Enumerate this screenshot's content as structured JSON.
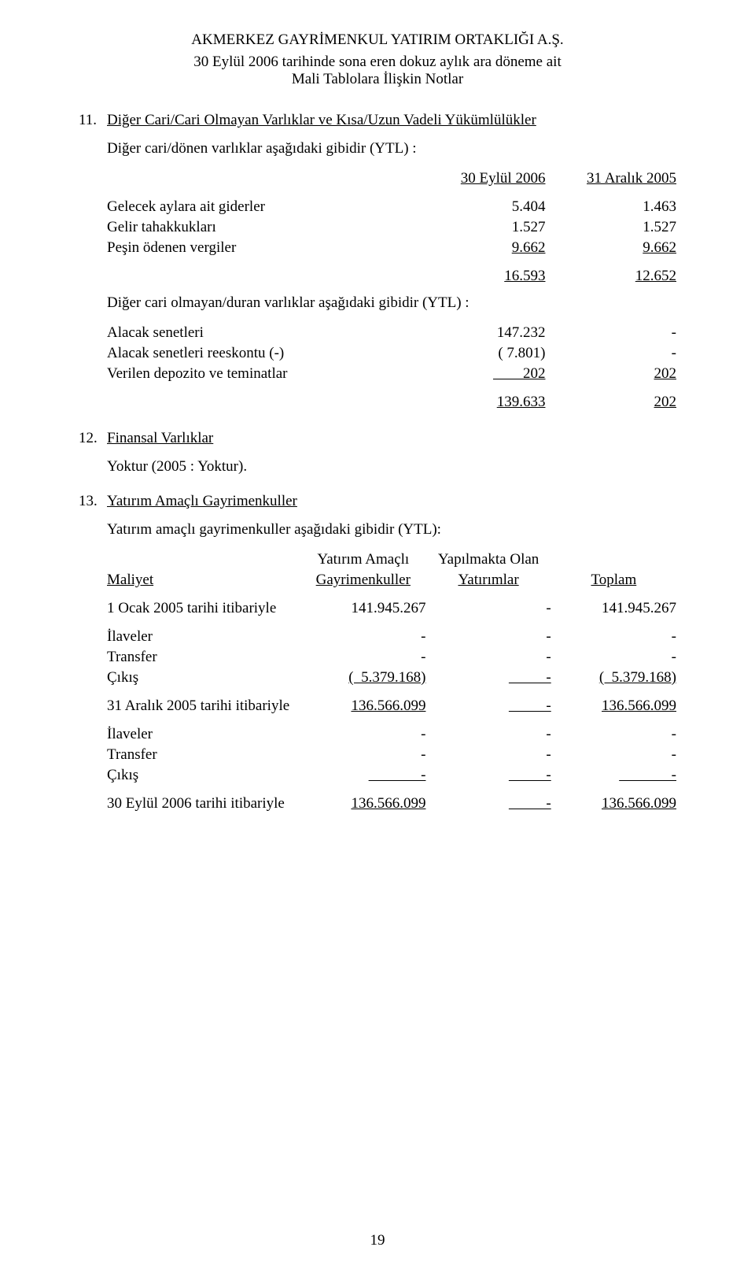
{
  "header": {
    "company": "AKMERKEZ GAYRİMENKUL YATIRIM ORTAKLIĞI A.Ş.",
    "sub_line1": "30 Eylül 2006 tarihinde sona eren dokuz aylık ara döneme ait",
    "sub_line2": "Mali Tablolara İlişkin Notlar"
  },
  "s11": {
    "num": "11.",
    "title": "Diğer Cari/Cari Olmayan Varlıklar ve Kısa/Uzun Vadeli Yükümlülükler",
    "intro": "Diğer cari/dönen varlıklar aşağıdaki gibidir (YTL) :",
    "col_a": "30 Eylül 2006",
    "col_b": "31 Aralık 2005",
    "rows": [
      {
        "label": "Gelecek aylara ait giderler",
        "a": "5.404",
        "b": "1.463"
      },
      {
        "label": "Gelir tahakkukları",
        "a": "1.527",
        "b": "1.527"
      },
      {
        "label": "Peşin ödenen vergiler",
        "a": "9.662",
        "b": "9.662"
      }
    ],
    "total": {
      "a": "16.593",
      "b": "12.652"
    },
    "intro2": "Diğer cari olmayan/duran varlıklar aşağıdaki gibidir (YTL) :",
    "rows2": [
      {
        "label": "Alacak senetleri",
        "a": "147.232",
        "b": "-"
      },
      {
        "label": "Alacak senetleri reeskontu (-)",
        "a": "( 7.801)",
        "b": "-"
      },
      {
        "label": "Verilen depozito ve teminatlar",
        "a": "        202",
        "b": "202"
      }
    ],
    "total2": {
      "a": "139.633",
      "b": "202"
    }
  },
  "s12": {
    "num": "12.",
    "title": "Finansal Varlıklar",
    "body": "Yoktur (2005 : Yoktur)."
  },
  "s13": {
    "num": "13.",
    "title": "Yatırım Amaçlı Gayrimenkuller",
    "intro": "Yatırım amaçlı gayrimenkuller aşağıdaki gibidir (YTL):",
    "head": {
      "label": "Maliyet",
      "col_a_line1": "Yatırım Amaçlı",
      "col_a_line2": "Gayrimenkuller",
      "col_b_line1": "Yapılmakta Olan",
      "col_b_line2": "Yatırımlar",
      "col_c": "Toplam"
    },
    "open2005": {
      "label": "1 Ocak 2005 tarihi itibariyle",
      "a": "141.945.267",
      "b": "-",
      "c": "141.945.267"
    },
    "mov1": [
      {
        "label": "İlaveler",
        "a": "-",
        "b": "-",
        "c": "-"
      },
      {
        "label": "Transfer",
        "a": "-",
        "b": "-",
        "c": "-"
      },
      {
        "label": "Çıkış",
        "a": "(  5.379.168)",
        "b": "          -",
        "c": "(  5.379.168)"
      }
    ],
    "close2005": {
      "label": "31 Aralık 2005 tarihi itibariyle",
      "a": "136.566.099",
      "b": "          -",
      "c": "136.566.099"
    },
    "mov2": [
      {
        "label": "İlaveler",
        "a": "-",
        "b": "-",
        "c": "-"
      },
      {
        "label": "Transfer",
        "a": "-",
        "b": "-",
        "c": "-"
      },
      {
        "label": "Çıkış",
        "a": "              -",
        "b": "          -",
        "c": "              -"
      }
    ],
    "close2006": {
      "label": "30 Eylül 2006 tarihi itibariyle",
      "a": "136.566.099",
      "b": "          -",
      "c": "136.566.099"
    }
  },
  "page_number": "19"
}
